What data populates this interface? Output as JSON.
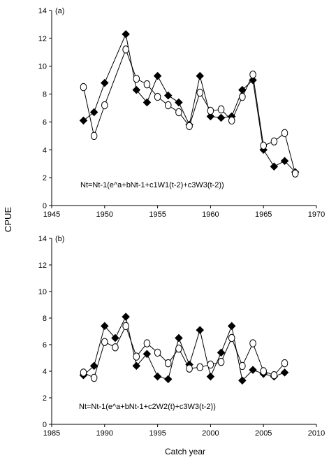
{
  "figure": {
    "ylabel": "CPUE",
    "xlabel": "Catch year"
  },
  "chart_data": [
    {
      "type": "line",
      "panel_label": "(a)",
      "annotation": "Nt=Nt-1(e^a+bNt-1+c1W1(t-2)+c3W3(t-2))",
      "xlabel": "",
      "ylabel": "CPUE",
      "xlim": [
        1945,
        1970
      ],
      "ylim": [
        0,
        14
      ],
      "x_ticks": [
        "1945",
        "1950",
        "1955",
        "1960",
        "1965",
        "1970"
      ],
      "y_ticks": [
        "0",
        "2",
        "4",
        "6",
        "8",
        "10",
        "12",
        "14"
      ],
      "grid": false,
      "x": [
        1948,
        1949,
        1950,
        1952,
        1953,
        1954,
        1955,
        1956,
        1957,
        1958,
        1959,
        1960,
        1961,
        1962,
        1963,
        1964,
        1965,
        1966,
        1967,
        1968
      ],
      "series": [
        {
          "marker": "filled-diamond",
          "values": [
            6.1,
            6.7,
            8.8,
            12.3,
            8.3,
            7.4,
            9.3,
            7.9,
            7.4,
            5.8,
            9.3,
            6.4,
            6.3,
            6.4,
            8.3,
            9.0,
            4.0,
            2.8,
            3.2,
            2.4
          ]
        },
        {
          "marker": "open-circle",
          "values": [
            8.5,
            5.0,
            7.2,
            11.2,
            9.1,
            8.7,
            7.8,
            7.2,
            6.7,
            5.7,
            8.1,
            6.8,
            6.9,
            6.1,
            7.8,
            9.4,
            4.3,
            4.6,
            5.2,
            2.3
          ]
        }
      ]
    },
    {
      "type": "line",
      "panel_label": "(b)",
      "annotation": "Nt=Nt-1(e^a+bNt-1+c2W2(t)+c3W3(t-2))",
      "xlabel": "Catch year",
      "ylabel": "CPUE",
      "xlim": [
        1985,
        2010
      ],
      "ylim": [
        0,
        14
      ],
      "x_ticks": [
        "1985",
        "1990",
        "1995",
        "2000",
        "2005",
        "2010"
      ],
      "y_ticks": [
        "0",
        "2",
        "4",
        "6",
        "8",
        "10",
        "12",
        "14"
      ],
      "grid": false,
      "x": [
        1988,
        1989,
        1990,
        1991,
        1992,
        1993,
        1994,
        1995,
        1996,
        1997,
        1998,
        1999,
        2000,
        2001,
        2002,
        2003,
        2004,
        2005,
        2006,
        2007
      ],
      "series": [
        {
          "marker": "filled-diamond",
          "values": [
            3.7,
            4.4,
            7.4,
            6.5,
            8.1,
            4.4,
            5.3,
            3.6,
            3.4,
            6.5,
            4.5,
            7.1,
            3.6,
            5.4,
            7.4,
            3.3,
            4.1,
            3.8,
            3.6,
            3.9
          ]
        },
        {
          "marker": "open-circle",
          "values": [
            3.9,
            3.5,
            6.2,
            5.8,
            7.4,
            5.1,
            6.1,
            5.4,
            4.6,
            5.7,
            4.2,
            4.3,
            4.5,
            4.7,
            6.5,
            4.4,
            6.1,
            4.0,
            3.7,
            4.6
          ]
        }
      ]
    }
  ]
}
